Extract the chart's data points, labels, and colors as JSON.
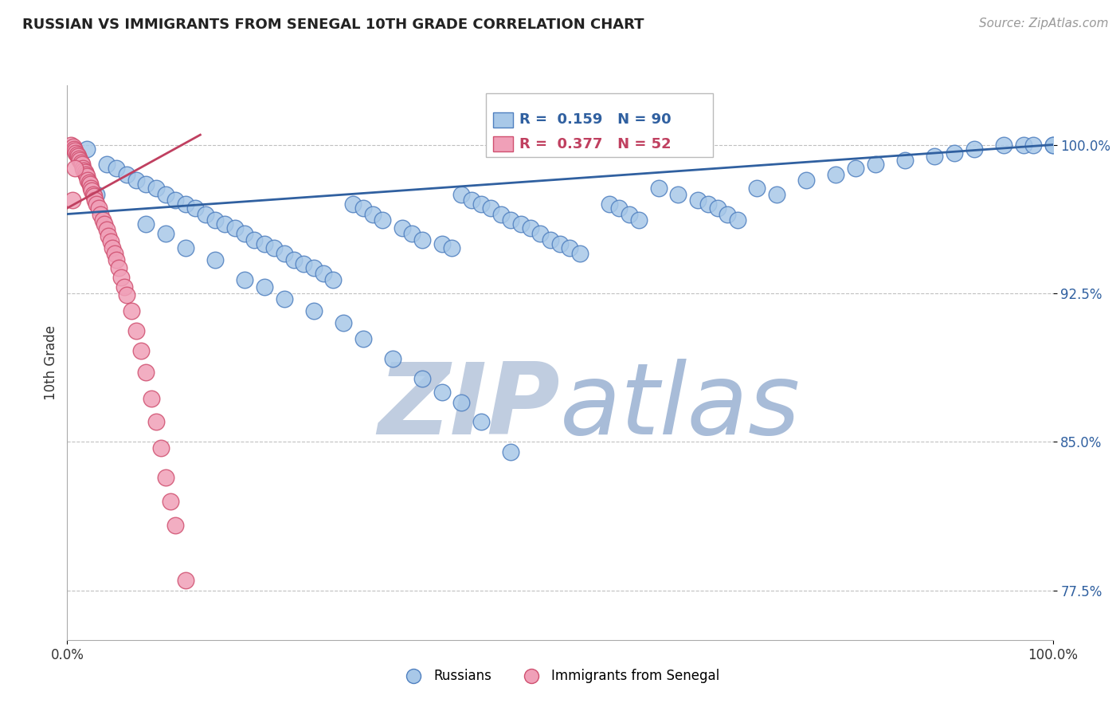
{
  "title": "RUSSIAN VS IMMIGRANTS FROM SENEGAL 10TH GRADE CORRELATION CHART",
  "source": "Source: ZipAtlas.com",
  "ylabel": "10th Grade",
  "y_ticks": [
    0.775,
    0.85,
    0.925,
    1.0
  ],
  "y_tick_labels": [
    "77.5%",
    "85.0%",
    "92.5%",
    "100.0%"
  ],
  "x_lim": [
    0.0,
    1.0
  ],
  "y_lim": [
    0.75,
    1.03
  ],
  "R_blue": 0.159,
  "N_blue": 90,
  "R_pink": 0.377,
  "N_pink": 52,
  "legend_label_blue": "Russians",
  "legend_label_pink": "Immigrants from Senegal",
  "blue_scatter_color": "#A8C8E8",
  "blue_edge_color": "#5080C0",
  "pink_scatter_color": "#F0A0B8",
  "pink_edge_color": "#D05070",
  "blue_line_color": "#3060A0",
  "pink_line_color": "#C04060",
  "watermark_zip_color": "#C0CDE0",
  "watermark_atlas_color": "#A8BCD8",
  "grid_color": "#C0C0C0",
  "blue_trend_x0": 0.0,
  "blue_trend_y0": 0.965,
  "blue_trend_x1": 1.0,
  "blue_trend_y1": 1.0,
  "pink_trend_x0": 0.0,
  "pink_trend_y0": 0.968,
  "pink_trend_x1": 0.135,
  "pink_trend_y1": 1.005,
  "blue_scatter_x": [
    0.02,
    0.04,
    0.05,
    0.06,
    0.07,
    0.08,
    0.09,
    0.1,
    0.11,
    0.12,
    0.13,
    0.14,
    0.15,
    0.16,
    0.17,
    0.18,
    0.19,
    0.2,
    0.21,
    0.22,
    0.23,
    0.24,
    0.25,
    0.26,
    0.27,
    0.29,
    0.3,
    0.31,
    0.32,
    0.34,
    0.35,
    0.36,
    0.38,
    0.39,
    0.4,
    0.41,
    0.42,
    0.43,
    0.44,
    0.45,
    0.46,
    0.47,
    0.48,
    0.49,
    0.5,
    0.51,
    0.52,
    0.55,
    0.56,
    0.57,
    0.58,
    0.6,
    0.62,
    0.64,
    0.65,
    0.66,
    0.67,
    0.68,
    0.7,
    0.72,
    0.75,
    0.78,
    0.8,
    0.82,
    0.85,
    0.88,
    0.9,
    0.92,
    0.95,
    0.97,
    0.98,
    1.0,
    1.0,
    0.03,
    0.08,
    0.1,
    0.12,
    0.15,
    0.18,
    0.2,
    0.22,
    0.25,
    0.28,
    0.3,
    0.33,
    0.36,
    0.38,
    0.4,
    0.42,
    0.45
  ],
  "blue_scatter_y": [
    0.998,
    0.99,
    0.988,
    0.985,
    0.982,
    0.98,
    0.978,
    0.975,
    0.972,
    0.97,
    0.968,
    0.965,
    0.962,
    0.96,
    0.958,
    0.955,
    0.952,
    0.95,
    0.948,
    0.945,
    0.942,
    0.94,
    0.938,
    0.935,
    0.932,
    0.97,
    0.968,
    0.965,
    0.962,
    0.958,
    0.955,
    0.952,
    0.95,
    0.948,
    0.975,
    0.972,
    0.97,
    0.968,
    0.965,
    0.962,
    0.96,
    0.958,
    0.955,
    0.952,
    0.95,
    0.948,
    0.945,
    0.97,
    0.968,
    0.965,
    0.962,
    0.978,
    0.975,
    0.972,
    0.97,
    0.968,
    0.965,
    0.962,
    0.978,
    0.975,
    0.982,
    0.985,
    0.988,
    0.99,
    0.992,
    0.994,
    0.996,
    0.998,
    1.0,
    1.0,
    1.0,
    1.0,
    1.0,
    0.975,
    0.96,
    0.955,
    0.948,
    0.942,
    0.932,
    0.928,
    0.922,
    0.916,
    0.91,
    0.902,
    0.892,
    0.882,
    0.875,
    0.87,
    0.86,
    0.845
  ],
  "pink_scatter_x": [
    0.004,
    0.006,
    0.007,
    0.008,
    0.009,
    0.01,
    0.011,
    0.012,
    0.013,
    0.014,
    0.015,
    0.016,
    0.017,
    0.018,
    0.019,
    0.02,
    0.021,
    0.022,
    0.023,
    0.024,
    0.025,
    0.026,
    0.027,
    0.028,
    0.03,
    0.032,
    0.034,
    0.036,
    0.038,
    0.04,
    0.042,
    0.044,
    0.046,
    0.048,
    0.05,
    0.052,
    0.055,
    0.058,
    0.06,
    0.065,
    0.07,
    0.075,
    0.08,
    0.085,
    0.09,
    0.095,
    0.1,
    0.105,
    0.11,
    0.12,
    0.005,
    0.008
  ],
  "pink_scatter_y": [
    1.0,
    0.999,
    0.998,
    0.997,
    0.996,
    0.995,
    0.994,
    0.993,
    0.992,
    0.991,
    0.99,
    0.988,
    0.987,
    0.986,
    0.985,
    0.984,
    0.982,
    0.981,
    0.98,
    0.978,
    0.977,
    0.975,
    0.974,
    0.972,
    0.97,
    0.968,
    0.965,
    0.962,
    0.96,
    0.957,
    0.954,
    0.951,
    0.948,
    0.945,
    0.942,
    0.938,
    0.933,
    0.928,
    0.924,
    0.916,
    0.906,
    0.896,
    0.885,
    0.872,
    0.86,
    0.847,
    0.832,
    0.82,
    0.808,
    0.78,
    0.972,
    0.988
  ]
}
